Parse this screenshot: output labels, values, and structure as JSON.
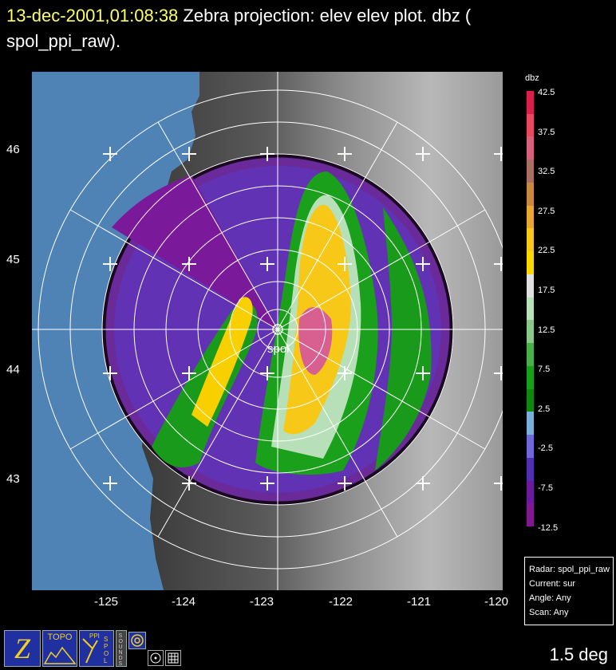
{
  "header": {
    "timestamp": "13-dec-2001,01:08:38",
    "line1_rest": "Zebra projection: elev elev  plot.  dbz (",
    "line2": "spol_ppi_raw)."
  },
  "map": {
    "lat_labels": [
      "46",
      "45",
      "44",
      "43"
    ],
    "lon_labels": [
      "-125",
      "-124",
      "-123",
      "-122",
      "-121",
      "-120"
    ],
    "radar_label": "spol"
  },
  "colorbar": {
    "units": "dbz",
    "labels": [
      "42.5",
      "37.5",
      "32.5",
      "27.5",
      "22.5",
      "17.5",
      "12.5",
      "7.5",
      "2.5",
      "-2.5",
      "-7.5",
      "-12.5"
    ],
    "colors": [
      "#d8204a",
      "#e84860",
      "#d8607a",
      "#a87060",
      "#c88840",
      "#e8a830",
      "#f8c818",
      "#f8d800",
      "#e0e0e0",
      "#b8e0b8",
      "#88c888",
      "#48b048",
      "#18a018",
      "#108810",
      "#78b0d8",
      "#7068d8",
      "#5030b0",
      "#6a1a9a",
      "#801890"
    ]
  },
  "info_box": {
    "radar": "Radar: spol_ppi_raw",
    "current": "Current: sur",
    "angle": "Angle: Any",
    "scan": "Scan: Any"
  },
  "elevation": "1.5 deg",
  "toolbar": {
    "z_icon": "Z",
    "topo_label": "TOPO",
    "ppi_label": "PPI",
    "spol_label": "SPOL",
    "sounds_label": "SOUNDS"
  },
  "colors": {
    "ocean": "#4f83b5",
    "timestamp": "#ffff66"
  }
}
